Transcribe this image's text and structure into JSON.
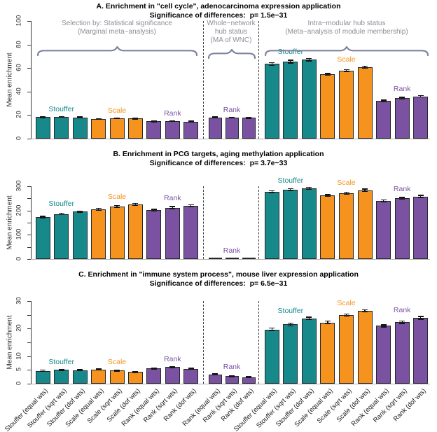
{
  "colors": {
    "stouffer": "#17898A",
    "scale": "#F6921E",
    "rank": "#7B52A2",
    "error_bar": "#141414",
    "brace": "#7D82A0",
    "group_header_text": "#8D8D96",
    "axis": "#3A3A3A",
    "baseline": "#B3B3B3"
  },
  "xaxis": {
    "categories": [
      "Stouffer (equal wts)",
      "Stouffer (sqrt wts)",
      "Stouffer (dof wts)",
      "Scale (equal wts)",
      "Scale (sqrt wts)",
      "Scale (dof wts)",
      "Rank (equal wts)",
      "Rank (sqrt wts)",
      "Rank (dof wts)",
      "Rank (equal wts)",
      "Rank (sqrt wts)",
      "Rank (dof wts)",
      "Stouffer (equal wts)",
      "Stouffer (sqrt wts)",
      "Stouffer (dof wts)",
      "Scale (equal wts)",
      "Scale (sqrt wts)",
      "Scale (dof wts)",
      "Rank (equal wts)",
      "Rank (sqrt wts)",
      "Rank (dof wts)"
    ]
  },
  "chart_data": [
    {
      "type": "bar",
      "panel": "A",
      "title": "A. Enrichment in \"cell cycle\", adenocarcinoma expression application",
      "subtitle": "Significance of differences:  p= 1.5e−31",
      "ylabel": "Mean enrichment",
      "ylim": [
        0,
        100
      ],
      "yticks": {
        "labels": [
          0,
          20,
          40,
          60,
          80,
          100
        ],
        "minor_step": null
      },
      "grid": false,
      "sections": [
        {
          "header": [
            "Selection by: Statistical significance",
            "(Marginal meta−analysis)"
          ],
          "series": [
            {
              "name": "Stouffer",
              "color_key": "stouffer",
              "values": [
                18.2,
                18.6,
                18.1
              ],
              "errors": [
                0.3,
                0.3,
                0.3
              ]
            },
            {
              "name": "Scale",
              "color_key": "scale",
              "values": [
                16.6,
                17.1,
                17.0
              ],
              "errors": [
                0.3,
                0.3,
                0.3
              ]
            },
            {
              "name": "Rank",
              "color_key": "rank",
              "values": [
                14.6,
                15.0,
                14.5
              ],
              "errors": [
                0.3,
                0.3,
                0.3
              ]
            }
          ]
        },
        {
          "header": [
            "Whole−network",
            "hub status",
            "(MA of WNC)"
          ],
          "series": [
            {
              "name": "Rank",
              "color_key": "rank",
              "values": [
                18.1,
                18.0,
                17.6
              ],
              "errors": [
                0.3,
                0.3,
                0.3
              ]
            }
          ]
        },
        {
          "header": [
            "Intra−modular hub status",
            "(Meta−analysis of module membership)"
          ],
          "series": [
            {
              "name": "Stouffer",
              "color_key": "stouffer",
              "values": [
                63.5,
                65.5,
                67.0
              ],
              "errors": [
                1.2,
                1.2,
                1.0
              ]
            },
            {
              "name": "Scale",
              "color_key": "scale",
              "values": [
                54.5,
                58.0,
                61.0
              ],
              "errors": [
                0.8,
                0.8,
                0.8
              ]
            },
            {
              "name": "Rank",
              "color_key": "rank",
              "values": [
                32.0,
                34.5,
                36.0
              ],
              "errors": [
                0.7,
                0.7,
                0.7
              ]
            }
          ]
        }
      ]
    },
    {
      "type": "bar",
      "panel": "B",
      "title": "B. Enrichment in PCG targets, aging methylation application",
      "subtitle": "Significance of differences:  p= 3.7e−33",
      "ylabel": "Mean enrichment",
      "ylim": [
        0,
        300
      ],
      "yticks": {
        "labels": [
          0,
          100,
          200,
          300
        ],
        "minor_step": 50
      },
      "grid": false,
      "sections": [
        {
          "header": null,
          "series": [
            {
              "name": "Stouffer",
              "color_key": "stouffer",
              "values": [
                173,
                186,
                195
              ],
              "errors": [
                3,
                3,
                3
              ]
            },
            {
              "name": "Scale",
              "color_key": "scale",
              "values": [
                205,
                216,
                225
              ],
              "errors": [
                4,
                4,
                4
              ]
            },
            {
              "name": "Rank",
              "color_key": "rank",
              "values": [
                201,
                212,
                219
              ],
              "errors": [
                4,
                4,
                4
              ]
            }
          ]
        },
        {
          "header": null,
          "series": [
            {
              "name": "Rank",
              "color_key": "rank",
              "values": [
                2,
                3,
                2
              ],
              "errors": [
                0.5,
                0.5,
                0.5
              ]
            }
          ]
        },
        {
          "header": null,
          "series": [
            {
              "name": "Stouffer",
              "color_key": "stouffer",
              "values": [
                278,
                286,
                292
              ],
              "errors": [
                4,
                4,
                4
              ]
            },
            {
              "name": "Scale",
              "color_key": "scale",
              "values": [
                262,
                272,
                284
              ],
              "errors": [
                4,
                4,
                4
              ]
            },
            {
              "name": "Rank",
              "color_key": "rank",
              "values": [
                240,
                250,
                258
              ],
              "errors": [
                4,
                4,
                4
              ]
            }
          ]
        }
      ]
    },
    {
      "type": "bar",
      "panel": "C",
      "title": "C. Enrichment in \"immune system process\", mouse liver expression application",
      "subtitle": "Significance of differences:  p= 6.5e−31",
      "ylabel": "Mean enrichment",
      "ylim": [
        0,
        30
      ],
      "yticks": {
        "labels": [
          0,
          5,
          10,
          20,
          30
        ],
        "minor_step": 5
      },
      "grid": false,
      "sections": [
        {
          "header": null,
          "series": [
            {
              "name": "Stouffer",
              "color_key": "stouffer",
              "values": [
                4.7,
                5.0,
                4.9
              ],
              "errors": [
                0.2,
                0.2,
                0.2
              ]
            },
            {
              "name": "Scale",
              "color_key": "scale",
              "values": [
                5.1,
                4.8,
                4.2
              ],
              "errors": [
                0.2,
                0.2,
                0.2
              ]
            },
            {
              "name": "Rank",
              "color_key": "rank",
              "values": [
                5.5,
                6.1,
                5.4
              ],
              "errors": [
                0.2,
                0.2,
                0.2
              ]
            }
          ]
        },
        {
          "header": null,
          "series": [
            {
              "name": "Rank",
              "color_key": "rank",
              "values": [
                3.4,
                2.7,
                2.4
              ],
              "errors": [
                0.15,
                0.15,
                0.15
              ]
            }
          ]
        },
        {
          "header": null,
          "series": [
            {
              "name": "Stouffer",
              "color_key": "stouffer",
              "values": [
                19.7,
                21.5,
                23.7
              ],
              "errors": [
                0.5,
                0.5,
                0.5
              ]
            },
            {
              "name": "Scale",
              "color_key": "scale",
              "values": [
                22.2,
                24.9,
                26.4
              ],
              "errors": [
                0.5,
                0.4,
                0.4
              ]
            },
            {
              "name": "Rank",
              "color_key": "rank",
              "values": [
                21.0,
                22.3,
                23.9
              ],
              "errors": [
                0.4,
                0.4,
                0.5
              ]
            }
          ]
        }
      ]
    }
  ]
}
